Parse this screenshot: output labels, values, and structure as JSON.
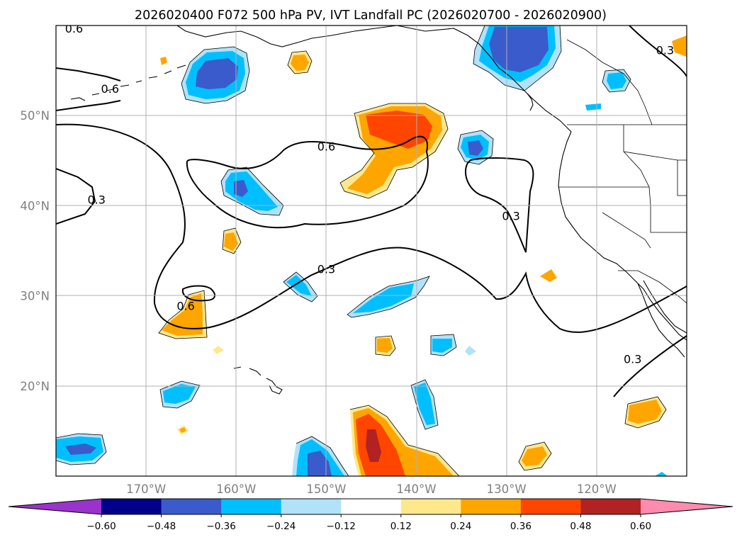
{
  "title": "2026020400 F072 500 hPa PV, IVT Landfall PC (2026020700 - 2026020900)",
  "map": {
    "lon_range": [
      -180,
      -110
    ],
    "lat_range": [
      10,
      60
    ],
    "lon_ticks": [
      {
        "value": -170,
        "label": "170°W"
      },
      {
        "value": -160,
        "label": "160°W"
      },
      {
        "value": -150,
        "label": "150°W"
      },
      {
        "value": -140,
        "label": "140°W"
      },
      {
        "value": -130,
        "label": "130°W"
      },
      {
        "value": -120,
        "label": "120°W"
      }
    ],
    "lat_ticks": [
      {
        "value": 20,
        "label": "20°N"
      },
      {
        "value": 30,
        "label": "30°N"
      },
      {
        "value": 40,
        "label": "40°N"
      },
      {
        "value": 50,
        "label": "50°N"
      }
    ],
    "contour_labels": [
      {
        "text": "0.6",
        "lon": -178,
        "lat": 59.7
      },
      {
        "text": "0.6",
        "lon": -174,
        "lat": 53
      },
      {
        "text": "0.3",
        "lon": -175.5,
        "lat": 40.7
      },
      {
        "text": "0.6",
        "lon": -150,
        "lat": 46.6
      },
      {
        "text": "0.3",
        "lon": -150,
        "lat": 33
      },
      {
        "text": "0.6",
        "lon": -165.6,
        "lat": 28.9
      },
      {
        "text": "0.3",
        "lon": -129.5,
        "lat": 38.9
      },
      {
        "text": "0.3",
        "lon": -116,
        "lat": 23
      },
      {
        "text": "0.3",
        "lon": -112.4,
        "lat": 57.3
      }
    ]
  },
  "colorbar": {
    "levels": [
      -0.6,
      -0.48,
      -0.36,
      -0.24,
      -0.12,
      0.12,
      0.24,
      0.36,
      0.48,
      0.6
    ],
    "tick_labels": [
      "−0.60",
      "−0.48",
      "−0.36",
      "−0.24",
      "−0.12",
      "0.12",
      "0.24",
      "0.36",
      "0.48",
      "0.60"
    ],
    "colors": [
      "#9933cc",
      "#00008b",
      "#3a5bcc",
      "#00bfff",
      "#b0e2fa",
      "#ffffff",
      "#ffe88c",
      "#ffa500",
      "#ff4500",
      "#b22222",
      "#ff8cb0"
    ]
  }
}
